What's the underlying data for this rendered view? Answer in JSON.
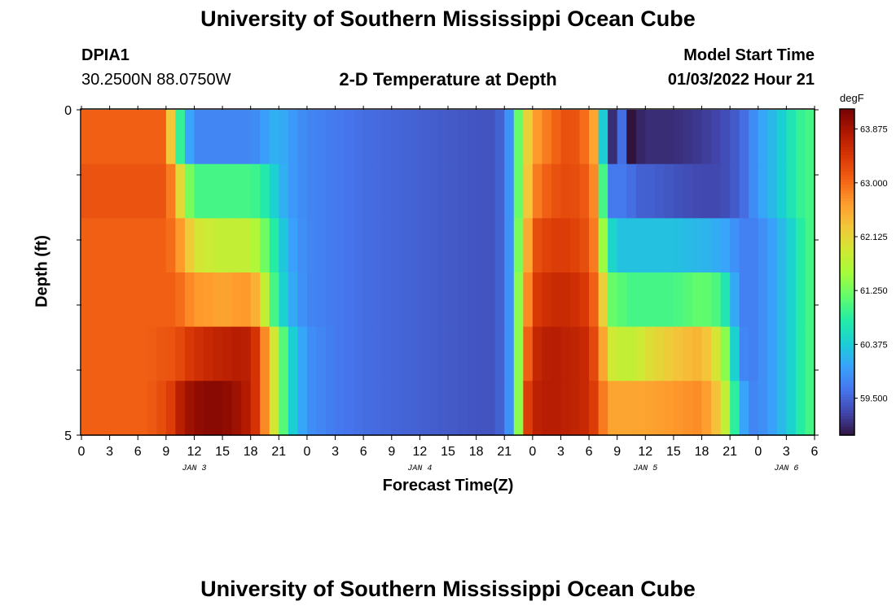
{
  "header": {
    "title": "University of Southern Mississippi Ocean Cube",
    "station": "DPIA1",
    "coords": "30.2500N  88.0750W",
    "subtitle": "2-D Temperature at Depth",
    "model_label": "Model Start Time",
    "model_time": "01/03/2022 Hour 21"
  },
  "footer": {
    "title": "University of Southern Mississippi Ocean Cube"
  },
  "colorbar": {
    "unit": "degF",
    "ticks": [
      "63.875",
      "63.000",
      "62.125",
      "61.250",
      "60.375",
      "59.500"
    ],
    "tick_values": [
      63.875,
      63.0,
      62.125,
      61.25,
      60.375,
      59.5
    ],
    "min": 58.9,
    "max": 64.2,
    "colors": [
      "#30123b",
      "#4145ab",
      "#4675ed",
      "#39a2fc",
      "#1bcfd4",
      "#24eca6",
      "#61fc6c",
      "#a4fc3b",
      "#d1e834",
      "#f3c63a",
      "#fe9b2d",
      "#f36315",
      "#d93806",
      "#b11901",
      "#7a0403"
    ]
  },
  "chart_data": {
    "type": "heatmap",
    "title": "2-D Temperature at Depth",
    "xlabel": "Forecast Time(Z)",
    "ylabel": "Depth (ft)",
    "x_ticks": [
      "0",
      "3",
      "6",
      "9",
      "12",
      "15",
      "18",
      "21",
      "0",
      "3",
      "6",
      "9",
      "12",
      "15",
      "18",
      "21",
      "0",
      "3",
      "6",
      "9",
      "12",
      "15",
      "18",
      "21",
      "0",
      "3",
      "6"
    ],
    "date_labels": [
      {
        "label": "JAN 3",
        "hour": 12
      },
      {
        "label": "JAN 4",
        "hour": 36
      },
      {
        "label": "JAN 5",
        "hour": 60
      },
      {
        "label": "JAN 6",
        "hour": 75
      }
    ],
    "y_ticks": [
      "0",
      "5"
    ],
    "ylim": [
      5,
      0
    ],
    "xlim": [
      0,
      78
    ],
    "hours": 78,
    "depth_rows": [
      "0",
      "1",
      "2",
      "3",
      "4",
      "5"
    ],
    "anchor_hours": [
      0,
      7,
      9,
      9.5,
      10,
      11,
      12,
      13,
      15,
      17,
      18,
      19,
      20,
      21,
      22,
      24,
      27,
      30,
      36,
      42,
      44,
      45,
      46,
      46.5,
      47,
      48,
      50,
      52,
      54,
      54.5,
      55,
      55.5,
      56,
      56.5,
      57,
      57.5,
      58,
      58.5,
      59,
      60,
      63,
      66,
      68,
      69,
      70,
      71,
      72,
      74,
      76,
      77,
      78
    ],
    "temperatures": [
      [
        63.1,
        63.1,
        63.1,
        62.3,
        61.5,
        60.3,
        59.8,
        59.8,
        59.8,
        59.8,
        59.8,
        59.9,
        60.1,
        60.2,
        60.0,
        59.8,
        59.7,
        59.6,
        59.5,
        59.4,
        59.4,
        59.6,
        60.2,
        61.2,
        61.8,
        62.6,
        63.0,
        63.3,
        62.9,
        62.6,
        61.6,
        60.4,
        59.6,
        59.1,
        58.9,
        59.6,
        58.5,
        58.8,
        59.0,
        59.1,
        59.1,
        59.2,
        59.3,
        59.4,
        59.5,
        59.7,
        60.0,
        60.3,
        60.8,
        61.0,
        61.0
      ],
      [
        63.2,
        63.2,
        63.2,
        62.9,
        62.6,
        61.6,
        61.0,
        61.0,
        61.0,
        61.0,
        61.0,
        60.9,
        60.6,
        60.3,
        60.0,
        59.8,
        59.7,
        59.6,
        59.5,
        59.4,
        59.4,
        59.6,
        60.2,
        61.2,
        61.8,
        62.8,
        63.2,
        63.3,
        63.1,
        62.8,
        62.0,
        61.0,
        59.8,
        59.7,
        59.7,
        59.7,
        59.6,
        59.6,
        59.5,
        59.5,
        59.4,
        59.3,
        59.3,
        59.4,
        59.5,
        59.7,
        60.0,
        60.3,
        60.8,
        61.0,
        61.0
      ],
      [
        63.1,
        63.1,
        63.1,
        63.0,
        62.9,
        62.5,
        62.0,
        61.9,
        61.8,
        61.8,
        61.8,
        61.5,
        61.0,
        60.6,
        60.1,
        59.8,
        59.7,
        59.6,
        59.5,
        59.4,
        59.4,
        59.6,
        60.2,
        61.3,
        61.9,
        63.2,
        63.4,
        63.4,
        63.2,
        62.9,
        62.4,
        61.5,
        60.8,
        60.5,
        60.3,
        60.3,
        60.3,
        60.3,
        60.3,
        60.3,
        60.3,
        60.2,
        60.1,
        60.0,
        59.8,
        59.7,
        59.8,
        60.1,
        60.6,
        61.0,
        61.0
      ],
      [
        63.1,
        63.1,
        63.1,
        63.1,
        63.1,
        62.9,
        62.7,
        62.7,
        62.6,
        62.7,
        62.7,
        62.3,
        61.3,
        60.7,
        60.2,
        59.8,
        59.7,
        59.6,
        59.5,
        59.4,
        59.4,
        59.6,
        60.2,
        61.4,
        62.2,
        63.4,
        63.6,
        63.6,
        63.4,
        63.1,
        62.8,
        62.2,
        61.4,
        61.2,
        61.1,
        61.1,
        61.0,
        61.0,
        61.0,
        61.0,
        61.0,
        61.2,
        61.0,
        60.4,
        59.8,
        59.7,
        59.8,
        60.1,
        60.6,
        61.0,
        61.0
      ],
      [
        63.1,
        63.1,
        63.2,
        63.2,
        63.2,
        63.4,
        63.5,
        63.6,
        63.7,
        63.8,
        63.7,
        63.3,
        62.3,
        61.6,
        60.6,
        59.9,
        59.7,
        59.6,
        59.5,
        59.4,
        59.4,
        59.6,
        60.2,
        61.4,
        62.6,
        63.6,
        63.8,
        63.7,
        63.6,
        63.3,
        63.1,
        62.6,
        62.0,
        61.9,
        61.8,
        61.8,
        61.8,
        61.8,
        61.8,
        62.0,
        62.3,
        62.5,
        61.8,
        61.0,
        59.9,
        59.7,
        59.8,
        60.1,
        60.6,
        61.0,
        61.0
      ],
      [
        63.1,
        63.1,
        63.3,
        63.4,
        63.6,
        63.9,
        64.0,
        64.1,
        64.1,
        63.9,
        63.7,
        63.3,
        62.3,
        61.6,
        60.6,
        59.9,
        59.7,
        59.6,
        59.5,
        59.4,
        59.4,
        59.6,
        60.2,
        61.4,
        63.1,
        63.7,
        63.8,
        63.7,
        63.6,
        63.4,
        63.2,
        62.9,
        62.6,
        62.6,
        62.6,
        62.6,
        62.6,
        62.6,
        62.6,
        62.6,
        62.7,
        62.8,
        62.2,
        61.4,
        60.3,
        59.8,
        59.8,
        60.1,
        60.6,
        61.0,
        61.0
      ]
    ]
  }
}
